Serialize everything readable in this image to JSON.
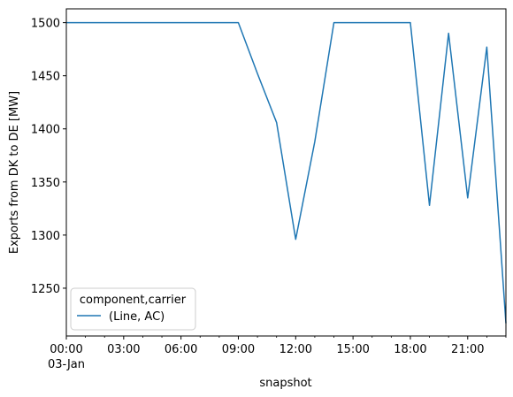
{
  "chart_data": {
    "type": "line",
    "xlabel": "snapshot",
    "ylabel": "Exports from DK to DE [MW]",
    "x_unit": "hour",
    "x_date_label": "03-Jan",
    "x": [
      0,
      1,
      2,
      3,
      4,
      5,
      6,
      7,
      8,
      9,
      10,
      11,
      12,
      13,
      14,
      15,
      16,
      17,
      18,
      19,
      20,
      21,
      22,
      23
    ],
    "series": [
      {
        "name": "(Line, AC)",
        "color": "#1f77b4",
        "values": [
          1500,
          1500,
          1500,
          1500,
          1500,
          1500,
          1500,
          1500,
          1500,
          1500,
          1452,
          1406,
          1296,
          1388,
          1500,
          1500,
          1500,
          1500,
          1500,
          1328,
          1490,
          1335,
          1477,
          1217
        ]
      }
    ],
    "xlim": [
      0,
      23
    ],
    "ylim": [
      1205,
      1513
    ],
    "x_ticks": [
      {
        "value": 0,
        "label": "00:00"
      },
      {
        "value": 3,
        "label": "03:00"
      },
      {
        "value": 6,
        "label": "06:00"
      },
      {
        "value": 9,
        "label": "09:00"
      },
      {
        "value": 12,
        "label": "12:00"
      },
      {
        "value": 15,
        "label": "15:00"
      },
      {
        "value": 18,
        "label": "18:00"
      },
      {
        "value": 21,
        "label": "21:00"
      }
    ],
    "x_minor_ticks": [
      1,
      2,
      4,
      5,
      7,
      8,
      10,
      11,
      13,
      14,
      16,
      17,
      19,
      20,
      22,
      23
    ],
    "y_ticks": [
      {
        "value": 1250,
        "label": "1250"
      },
      {
        "value": 1300,
        "label": "1300"
      },
      {
        "value": 1350,
        "label": "1350"
      },
      {
        "value": 1400,
        "label": "1400"
      },
      {
        "value": 1450,
        "label": "1450"
      },
      {
        "value": 1500,
        "label": "1500"
      }
    ],
    "grid": false,
    "legend": {
      "title": "component,carrier",
      "placement": "lower-left"
    }
  }
}
